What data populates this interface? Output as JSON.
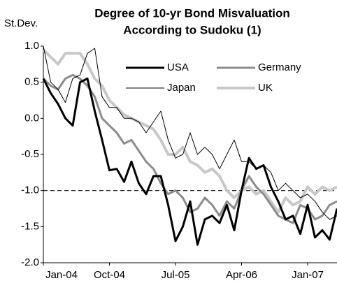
{
  "chart_data": {
    "type": "line",
    "title": [
      "Degree of 10-yr Bond Misvaluation",
      "According to Sudoku (1)"
    ],
    "y_label": "St.Dev.",
    "categories": [
      "Jan-04",
      null,
      null,
      null,
      null,
      null,
      null,
      null,
      null,
      "Oct-04",
      null,
      null,
      null,
      null,
      null,
      null,
      null,
      null,
      "Jul-05",
      null,
      null,
      null,
      null,
      null,
      null,
      null,
      null,
      "Apr-06",
      null,
      null,
      null,
      null,
      null,
      null,
      null,
      null,
      "Jan-07",
      null,
      null,
      null,
      null
    ],
    "series": [
      {
        "name": "USA",
        "color": "#000000",
        "line_width": 3,
        "values": [
          0.55,
          0.35,
          0.2,
          0.0,
          -0.1,
          0.5,
          0.55,
          0.1,
          -0.3,
          -0.72,
          -0.7,
          -0.88,
          -0.6,
          -0.9,
          -1.05,
          -0.8,
          -0.8,
          -1.2,
          -1.7,
          -1.5,
          -1.15,
          -1.75,
          -1.4,
          -1.35,
          -1.45,
          -1.2,
          -1.55,
          -1.0,
          -0.55,
          -0.7,
          -0.65,
          -0.95,
          -1.15,
          -1.4,
          -1.35,
          -1.6,
          -1.2,
          -1.65,
          -1.55,
          -1.68,
          -1.25
        ]
      },
      {
        "name": "Germany",
        "color": "#8c8c8c",
        "line_width": 3,
        "values": [
          0.55,
          0.45,
          0.4,
          0.55,
          0.6,
          0.55,
          0.45,
          0.3,
          0.0,
          -0.1,
          -0.2,
          -0.35,
          -0.3,
          -0.45,
          -0.6,
          -0.7,
          -0.9,
          -1.05,
          -1.0,
          -1.1,
          -1.3,
          -1.25,
          -1.1,
          -1.2,
          -1.35,
          -1.15,
          -1.25,
          -1.0,
          -0.8,
          -0.95,
          -1.05,
          -1.2,
          -1.35,
          -1.4,
          -1.45,
          -1.2,
          -1.25,
          -1.4,
          -1.35,
          -1.2,
          -1.15
        ]
      },
      {
        "name": "Japan",
        "color": "#000000",
        "line_width": 1,
        "values": [
          1.0,
          0.5,
          0.4,
          0.22,
          0.55,
          0.6,
          0.9,
          0.97,
          0.3,
          0.15,
          0.15,
          0.0,
          0.0,
          -0.05,
          -0.2,
          -0.05,
          0.1,
          -0.3,
          -0.55,
          -0.5,
          -0.2,
          -0.5,
          -0.4,
          -0.5,
          -0.7,
          -0.5,
          -0.3,
          -0.6,
          -0.6,
          -0.7,
          -0.65,
          -0.75,
          -1.0,
          -0.9,
          -1.0,
          -1.1,
          -1.05,
          -1.15,
          -1.3,
          -1.4,
          -1.35
        ]
      },
      {
        "name": "UK",
        "color": "#c8c8c8",
        "line_width": 4,
        "values": [
          0.95,
          0.85,
          0.75,
          0.9,
          0.9,
          0.9,
          0.75,
          0.55,
          0.45,
          0.25,
          0.15,
          0.05,
          0.0,
          -0.05,
          -0.1,
          -0.15,
          -0.3,
          -0.5,
          -0.5,
          -0.4,
          -0.6,
          -0.65,
          -0.75,
          -0.7,
          -0.8,
          -1.0,
          -1.1,
          -1.0,
          -0.95,
          -1.05,
          -1.0,
          -1.15,
          -1.3,
          -1.1,
          -1.2,
          -1.15,
          -0.95,
          -1.05,
          -0.95,
          -1.0,
          -0.95
        ]
      }
    ],
    "ylim": [
      -2.0,
      1.0
    ],
    "yticks": [
      {
        "value": -2.0,
        "label": "-2.0"
      },
      -1.5,
      {
        "value": -1.0,
        "label": "-1.0"
      },
      -0.5,
      {
        "value": 0.0,
        "label": "0.0"
      },
      0.5,
      {
        "value": 1.0,
        "label": "1.0"
      }
    ],
    "reference_line": -1.0,
    "grid": false
  }
}
